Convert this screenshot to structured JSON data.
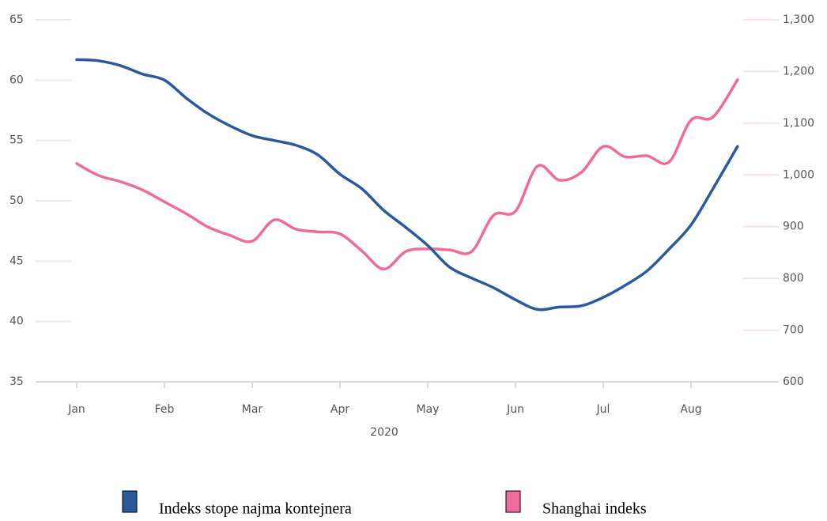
{
  "chart_data": {
    "type": "line",
    "x_label": "2020",
    "xlim": [
      -0.05,
      8.0
    ],
    "xticks": [
      {
        "value": 0,
        "label": "Jan"
      },
      {
        "value": 1,
        "label": "Feb"
      },
      {
        "value": 2,
        "label": "Mar"
      },
      {
        "value": 3,
        "label": "Apr"
      },
      {
        "value": 4,
        "label": "May"
      },
      {
        "value": 5,
        "label": "Jun"
      },
      {
        "value": 6,
        "label": "Jul"
      },
      {
        "value": 7,
        "label": "Aug"
      }
    ],
    "ylim": [
      35,
      65
    ],
    "yticks": [
      35,
      40,
      45,
      50,
      55,
      60,
      65
    ],
    "y2lim": [
      600,
      1300
    ],
    "y2ticks": [
      600,
      700,
      800,
      900,
      {
        "value": 1000,
        "label": "1,000"
      },
      {
        "value": 1100,
        "label": "1,100"
      },
      {
        "value": 1200,
        "label": "1,200"
      },
      {
        "value": 1300,
        "label": "1,300"
      }
    ],
    "series": [
      {
        "name": "Indeks stope najma kontejnera",
        "color": "#2a5a9b",
        "x": [
          0,
          0.25,
          0.5,
          0.75,
          1,
          1.25,
          1.5,
          1.75,
          2,
          2.25,
          2.5,
          2.75,
          3,
          3.25,
          3.5,
          3.75,
          4,
          4.25,
          4.5,
          4.75,
          5,
          5.25,
          5.5,
          5.75,
          6,
          6.25,
          6.5,
          6.75,
          7,
          7.25,
          7.53
        ],
        "values": [
          61.7,
          61.6,
          61.2,
          60.5,
          60.0,
          58.5,
          57.2,
          56.2,
          55.4,
          55.0,
          54.6,
          53.8,
          52.2,
          51.0,
          49.2,
          47.8,
          46.3,
          44.5,
          43.6,
          42.8,
          41.8,
          41.0,
          41.2,
          41.3,
          42.0,
          43.0,
          44.2,
          46.0,
          48.0,
          51.0,
          54.5
        ]
      },
      {
        "name": "Shanghai indeks",
        "color": "#f06b9d",
        "axis": "y2",
        "x": [
          0,
          0.25,
          0.5,
          0.75,
          1,
          1.25,
          1.5,
          1.75,
          2,
          2.25,
          2.5,
          2.75,
          3,
          3.25,
          3.5,
          3.75,
          4,
          4.25,
          4.5,
          4.75,
          5,
          5.25,
          5.5,
          5.75,
          6,
          6.25,
          6.5,
          6.75,
          7,
          7.25,
          7.53
        ],
        "values": [
          1022,
          999,
          987,
          971,
          948,
          925,
          899,
          883,
          872,
          913,
          895,
          890,
          886,
          853,
          818,
          852,
          857,
          855,
          852,
          922,
          930,
          1017,
          990,
          1005,
          1055,
          1035,
          1037,
          1025,
          1106,
          1112,
          1184
        ]
      }
    ]
  }
}
